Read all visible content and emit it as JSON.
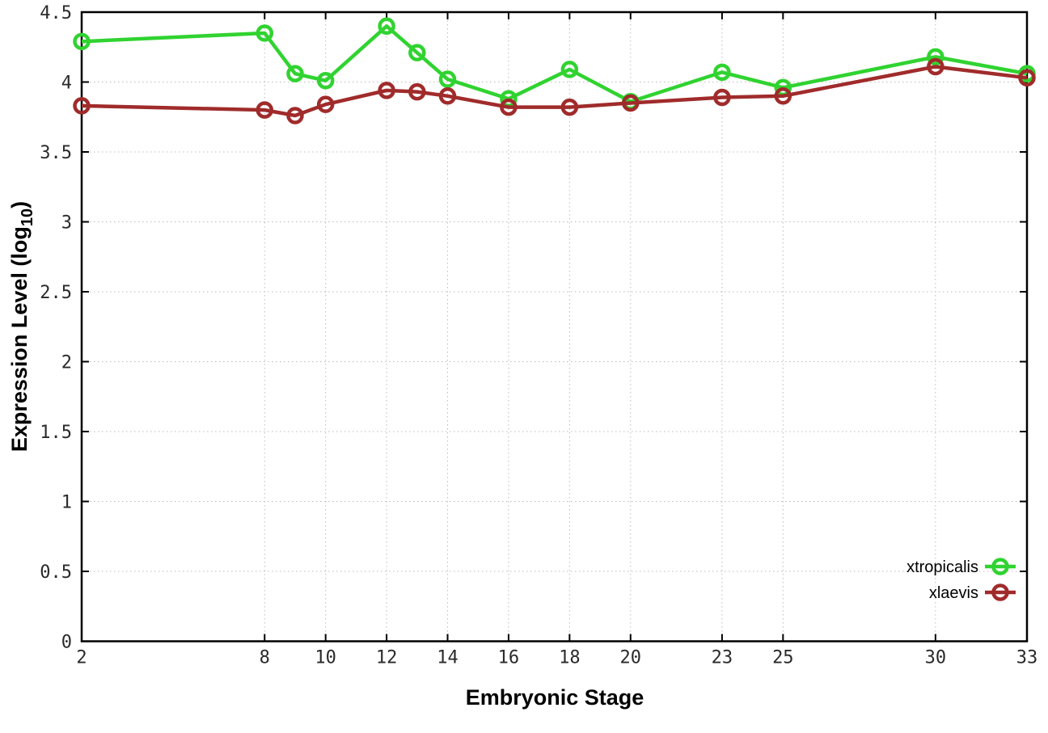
{
  "chart_data": {
    "type": "line",
    "title": "",
    "xlabel": "Embryonic Stage",
    "ylabel": "Expression Level (log10)",
    "ylabel_parts": {
      "pre": "Expression Level (log",
      "sub": "10",
      "post": ")"
    },
    "xlim": [
      2,
      33
    ],
    "ylim": [
      0,
      4.5
    ],
    "grid": true,
    "legend_position": "inside-bottom-right",
    "marker": "open-circle",
    "x": [
      2,
      8,
      9,
      10,
      12,
      13,
      14,
      16,
      18,
      20,
      23,
      25,
      30,
      33
    ],
    "x_ticks": [
      2,
      8,
      10,
      12,
      14,
      16,
      18,
      20,
      23,
      25,
      30,
      33
    ],
    "x_tick_labels": [
      "2",
      "8",
      "10",
      "12",
      "14",
      "16",
      "18",
      "20",
      "23",
      "25",
      "30",
      "33"
    ],
    "y_ticks": [
      0,
      0.5,
      1,
      1.5,
      2,
      2.5,
      3,
      3.5,
      4,
      4.5
    ],
    "y_tick_labels": [
      "0",
      "0.5",
      "1",
      "1.5",
      "2",
      "2.5",
      "3",
      "3.5",
      "4",
      "4.5"
    ],
    "series": [
      {
        "name": "xtropicalis",
        "color": "#30d330",
        "values": [
          4.29,
          4.35,
          4.06,
          4.01,
          4.4,
          4.21,
          4.02,
          3.88,
          4.09,
          3.86,
          4.07,
          3.96,
          4.18,
          4.06
        ]
      },
      {
        "name": "xlaevis",
        "color": "#a02b2b",
        "values": [
          3.83,
          3.8,
          3.76,
          3.84,
          3.94,
          3.93,
          3.9,
          3.82,
          3.82,
          3.85,
          3.89,
          3.9,
          4.11,
          4.03
        ]
      }
    ]
  },
  "colors": {
    "background": "#ffffff",
    "border": "#000000",
    "grid": "#bbbbbb",
    "tick_label": "#2a2a2a"
  }
}
